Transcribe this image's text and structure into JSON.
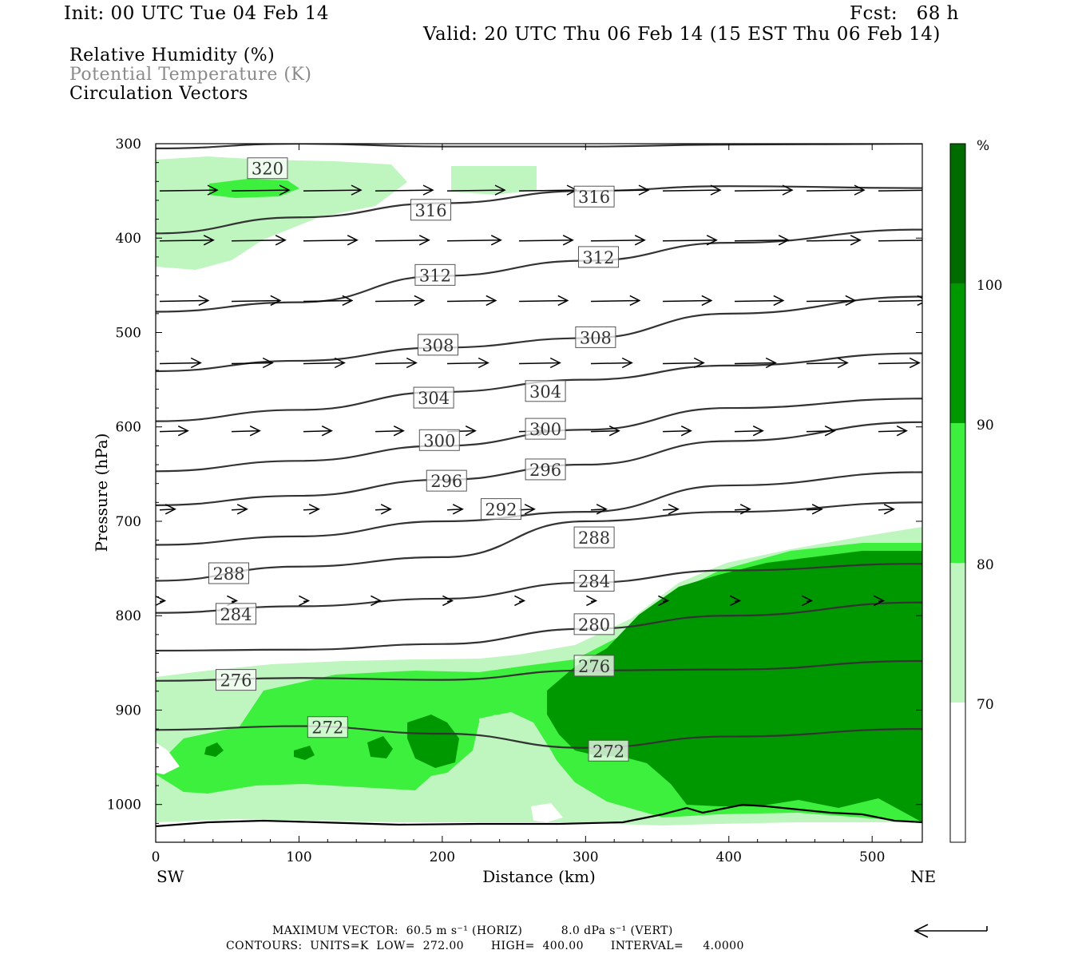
{
  "header": {
    "init": "Init: 00 UTC Tue 04 Feb 14",
    "fcst": "Fcst:   68 h",
    "valid": "Valid: 20 UTC Thu 06 Feb 14 (15 EST Thu 06 Feb 14)"
  },
  "fields": {
    "rh": "Relative Humidity (%)",
    "theta": "Potential Temperature (K)",
    "vectors": "Circulation Vectors"
  },
  "footer": {
    "max_vector": "MAXIMUM VECTOR:  60.5 m s⁻¹ (HORIZ)          8.0 dPa s⁻¹ (VERT)",
    "contours": "CONTOURS:  UNITS=K  LOW=  272.00       HIGH=  400.00       INTERVAL=     4.0000"
  },
  "colors": {
    "rh70": "#bff5bf",
    "rh80": "#3ef03e",
    "rh90": "#009800",
    "rh100": "#006c00",
    "contour": "#333333"
  },
  "chart_data": {
    "type": "heatmap",
    "xlabel": "Distance (km)",
    "ylabel": "Pressure (hPa)",
    "x_ticks": [
      0,
      100,
      200,
      300,
      400,
      500
    ],
    "y_ticks": [
      300,
      400,
      500,
      600,
      700,
      800,
      900,
      1000
    ],
    "xlim": [
      0,
      535
    ],
    "ylim": [
      300,
      1040
    ],
    "y_inverted": true,
    "left_endpoint": "SW",
    "right_endpoint": "NE",
    "colorbar": {
      "unit": "%",
      "levels": [
        70,
        80,
        90,
        100
      ]
    },
    "theta_contours": [
      {
        "value": 272,
        "p": [
          [
            0,
            921
          ],
          [
            100,
            917
          ],
          [
            200,
            925
          ],
          [
            300,
            940
          ],
          [
            400,
            928
          ],
          [
            535,
            920
          ]
        ]
      },
      {
        "value": 276,
        "p": [
          [
            0,
            869
          ],
          [
            100,
            866
          ],
          [
            200,
            868
          ],
          [
            300,
            858
          ],
          [
            400,
            857
          ],
          [
            535,
            848
          ]
        ]
      },
      {
        "value": 280,
        "p": [
          [
            0,
            837
          ],
          [
            100,
            836
          ],
          [
            200,
            830
          ],
          [
            300,
            814
          ],
          [
            400,
            800
          ],
          [
            535,
            786
          ]
        ]
      },
      {
        "value": 284,
        "p": [
          [
            0,
            797
          ],
          [
            100,
            790
          ],
          [
            200,
            782
          ],
          [
            300,
            765
          ],
          [
            400,
            752
          ],
          [
            535,
            745
          ]
        ]
      },
      {
        "value": 288,
        "p": [
          [
            0,
            763
          ],
          [
            100,
            748
          ],
          [
            200,
            738
          ],
          [
            300,
            700
          ],
          [
            400,
            690
          ],
          [
            535,
            680
          ]
        ]
      },
      {
        "value": 292,
        "p": [
          [
            0,
            725
          ],
          [
            100,
            716
          ],
          [
            200,
            700
          ],
          [
            300,
            690
          ],
          [
            400,
            662
          ],
          [
            535,
            648
          ]
        ]
      },
      {
        "value": 296,
        "p": [
          [
            0,
            683
          ],
          [
            100,
            673
          ],
          [
            200,
            656
          ],
          [
            300,
            640
          ],
          [
            400,
            615
          ],
          [
            535,
            595
          ]
        ]
      },
      {
        "value": 300,
        "p": [
          [
            0,
            647
          ],
          [
            100,
            636
          ],
          [
            200,
            620
          ],
          [
            300,
            603
          ],
          [
            400,
            580
          ],
          [
            535,
            570
          ]
        ]
      },
      {
        "value": 304,
        "p": [
          [
            0,
            594
          ],
          [
            100,
            582
          ],
          [
            200,
            563
          ],
          [
            300,
            550
          ],
          [
            400,
            535
          ],
          [
            535,
            522
          ]
        ]
      },
      {
        "value": 308,
        "p": [
          [
            0,
            541
          ],
          [
            100,
            530
          ],
          [
            200,
            516
          ],
          [
            300,
            506
          ],
          [
            400,
            480
          ],
          [
            535,
            462
          ]
        ]
      },
      {
        "value": 312,
        "p": [
          [
            0,
            478
          ],
          [
            100,
            468
          ],
          [
            200,
            440
          ],
          [
            300,
            424
          ],
          [
            400,
            405
          ],
          [
            535,
            391
          ]
        ]
      },
      {
        "value": 316,
        "p": [
          [
            0,
            395
          ],
          [
            100,
            378
          ],
          [
            200,
            363
          ],
          [
            300,
            350
          ],
          [
            400,
            345
          ],
          [
            535,
            347
          ]
        ]
      },
      {
        "value": 320,
        "p": [
          [
            0,
            305
          ],
          [
            100,
            300
          ],
          [
            200,
            303
          ],
          [
            300,
            303
          ],
          [
            400,
            301
          ],
          [
            535,
            300
          ]
        ]
      }
    ],
    "contour_labels": [
      {
        "value": 320,
        "x": 78,
        "p": 326
      },
      {
        "value": 316,
        "x": 192,
        "p": 370
      },
      {
        "value": 316,
        "x": 306,
        "p": 356
      },
      {
        "value": 312,
        "x": 195,
        "p": 439
      },
      {
        "value": 312,
        "x": 309,
        "p": 420
      },
      {
        "value": 308,
        "x": 197,
        "p": 513
      },
      {
        "value": 308,
        "x": 307,
        "p": 505
      },
      {
        "value": 304,
        "x": 194,
        "p": 569
      },
      {
        "value": 304,
        "x": 272,
        "p": 562
      },
      {
        "value": 300,
        "x": 198,
        "p": 614
      },
      {
        "value": 300,
        "x": 272,
        "p": 602
      },
      {
        "value": 296,
        "x": 203,
        "p": 657
      },
      {
        "value": 296,
        "x": 272,
        "p": 645
      },
      {
        "value": 292,
        "x": 241,
        "p": 687
      },
      {
        "value": 288,
        "x": 306,
        "p": 717
      },
      {
        "value": 288,
        "x": 51,
        "p": 755
      },
      {
        "value": 284,
        "x": 306,
        "p": 763
      },
      {
        "value": 284,
        "x": 56,
        "p": 798
      },
      {
        "value": 280,
        "x": 306,
        "p": 809
      },
      {
        "value": 276,
        "x": 306,
        "p": 853
      },
      {
        "value": 276,
        "x": 56,
        "p": 868
      },
      {
        "value": 272,
        "x": 120,
        "p": 918
      },
      {
        "value": 272,
        "x": 316,
        "p": 943
      }
    ],
    "vector_rows": [
      {
        "p": 350,
        "speed": 0.45
      },
      {
        "p": 403,
        "speed": 0.42
      },
      {
        "p": 467,
        "speed": 0.38
      },
      {
        "p": 533,
        "speed": 0.32
      },
      {
        "p": 605,
        "speed": 0.22
      },
      {
        "p": 688,
        "speed": 0.12
      },
      {
        "p": 785,
        "speed": 0.04
      }
    ]
  }
}
